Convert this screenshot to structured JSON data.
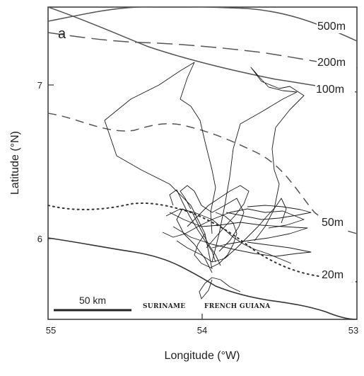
{
  "panel_letter": "a",
  "axes": {
    "xlabel": "Longitude (°W)",
    "ylabel": "Latitude (°N)",
    "xlim": [
      55,
      53
    ],
    "ylim": [
      5.55,
      7.5
    ],
    "x_ticks": [
      {
        "value": 55,
        "label": "55"
      },
      {
        "value": 54,
        "label": "54"
      },
      {
        "value": 53,
        "label": "53"
      }
    ],
    "y_ticks": [
      {
        "value": 7,
        "label": "7"
      },
      {
        "value": 6,
        "label": "6"
      }
    ]
  },
  "isobaths": [
    {
      "label": "500m",
      "style": "solid"
    },
    {
      "label": "200m",
      "style": "long-dash"
    },
    {
      "label": "100m",
      "style": "solid"
    },
    {
      "label": "50m",
      "style": "dash"
    },
    {
      "label": "20m",
      "style": "dotted"
    }
  ],
  "coastline": {
    "style": "solid"
  },
  "countries": [
    {
      "label": "SURINAME"
    },
    {
      "label": "FRENCH GUIANA"
    }
  ],
  "scale_bar": {
    "label": "50 km"
  },
  "colors": {
    "line": "#444444",
    "track": "#1a1a1a",
    "frame": "#333333",
    "background": "#ffffff"
  }
}
